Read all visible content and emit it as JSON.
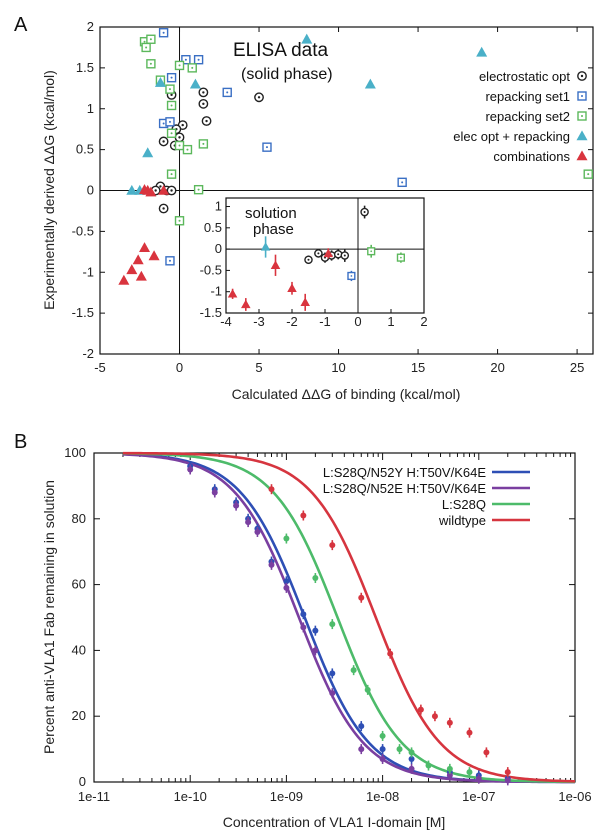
{
  "panels": {
    "a": "A",
    "b": "B"
  },
  "chart_data": [
    {
      "type": "scatter",
      "panel": "A",
      "xlabel": "Calculated ΔΔG of binding (kcal/mol)",
      "ylabel": "Experimentally derived ΔΔG (kcal/mol)",
      "xlim": [
        -5,
        26
      ],
      "ylim": [
        -2,
        2
      ],
      "xticks": [
        -5,
        0,
        5,
        10,
        15,
        20,
        25
      ],
      "yticks": [
        -2,
        -1.5,
        -1,
        -0.5,
        0,
        0.5,
        1,
        1.5,
        2
      ],
      "annotations": [
        "ELISA data",
        "(solid phase)"
      ],
      "legend_position": "top-right",
      "series": [
        {
          "name": "electrostatic opt",
          "marker": "circle-dot",
          "color": "#222222",
          "points": [
            [
              -1,
              0.6
            ],
            [
              -0.5,
              1.17
            ],
            [
              -0.3,
              0.55
            ],
            [
              0,
              0.65
            ],
            [
              0.2,
              0.8
            ],
            [
              -0.2,
              0.75
            ],
            [
              1.5,
              1.2
            ],
            [
              1.5,
              1.06
            ],
            [
              1.7,
              0.85
            ],
            [
              5,
              1.14
            ],
            [
              -1.2,
              0.05
            ],
            [
              -1.5,
              0
            ],
            [
              -0.8,
              0
            ],
            [
              -0.5,
              0
            ],
            [
              -1,
              -0.22
            ]
          ]
        },
        {
          "name": "repacking set1",
          "marker": "square-dot",
          "color": "#3a6fc4",
          "points": [
            [
              0.4,
              1.6
            ],
            [
              1.2,
              1.6
            ],
            [
              3,
              1.2
            ],
            [
              5.5,
              0.53
            ],
            [
              14,
              0.1
            ],
            [
              -1,
              0.82
            ],
            [
              -0.6,
              0.84
            ],
            [
              -0.5,
              1.38
            ],
            [
              -1,
              1.93
            ],
            [
              -0.6,
              -0.86
            ]
          ]
        },
        {
          "name": "repacking set2",
          "marker": "square-dot",
          "color": "#5cb85c",
          "points": [
            [
              -2.2,
              1.82
            ],
            [
              -1.8,
              1.85
            ],
            [
              -2.1,
              1.75
            ],
            [
              -1.8,
              1.55
            ],
            [
              -1.2,
              1.35
            ],
            [
              0,
              1.53
            ],
            [
              0.8,
              1.5
            ],
            [
              -0.6,
              1.24
            ],
            [
              -0.5,
              1.04
            ],
            [
              -0.5,
              0.7
            ],
            [
              0,
              0.55
            ],
            [
              0.5,
              0.5
            ],
            [
              1.5,
              0.57
            ],
            [
              -0.5,
              0.2
            ],
            [
              1.2,
              0.01
            ],
            [
              0,
              -0.37
            ],
            [
              25.7,
              0.2
            ]
          ]
        },
        {
          "name": "elec opt + repacking",
          "marker": "triangle",
          "color": "#4ab0c8",
          "points": [
            [
              -1.2,
              1.32
            ],
            [
              -2,
              0.46
            ],
            [
              1,
              1.3
            ],
            [
              8,
              1.85
            ],
            [
              12,
              1.3
            ],
            [
              19,
              1.69
            ],
            [
              -3,
              0
            ],
            [
              -2.5,
              0
            ]
          ]
        },
        {
          "name": "combinations",
          "marker": "triangle",
          "color": "#d9343e",
          "points": [
            [
              -3.5,
              -1.1
            ],
            [
              -3,
              -0.97
            ],
            [
              -2.6,
              -0.85
            ],
            [
              -2.4,
              -1.05
            ],
            [
              -2.2,
              -0.7
            ],
            [
              -1.6,
              -0.8
            ],
            [
              -1.8,
              -0.02
            ],
            [
              -2,
              0
            ],
            [
              -1,
              0
            ],
            [
              -2.2,
              0.01
            ]
          ]
        }
      ],
      "inset": {
        "annotations": [
          "solution",
          "phase"
        ],
        "xlim": [
          -4,
          2
        ],
        "ylim": [
          -1.5,
          1.2
        ],
        "xticks": [
          -4,
          -3,
          -2,
          -1,
          0,
          1,
          2
        ],
        "yticks": [
          1,
          0.5,
          0,
          -0.5,
          -1,
          -1.5
        ],
        "points": [
          {
            "series": "electrostatic opt",
            "x": 0.2,
            "y": 0.87,
            "err": 0.15
          },
          {
            "series": "electrostatic opt",
            "x": -1.5,
            "y": -0.25,
            "err": 0.1
          },
          {
            "series": "electrostatic opt",
            "x": -1.0,
            "y": -0.2,
            "err": 0.12
          },
          {
            "series": "electrostatic opt",
            "x": -0.8,
            "y": -0.15,
            "err": 0.12
          },
          {
            "series": "electrostatic opt",
            "x": -0.6,
            "y": -0.12,
            "err": 0.12
          },
          {
            "series": "electrostatic opt",
            "x": -0.4,
            "y": -0.15,
            "err": 0.15
          },
          {
            "series": "electrostatic opt",
            "x": -1.2,
            "y": -0.1,
            "err": 0.1
          },
          {
            "series": "repacking set1",
            "x": -0.2,
            "y": -0.63,
            "err": 0.12
          },
          {
            "series": "repacking set2",
            "x": 0.4,
            "y": -0.05,
            "err": 0.15
          },
          {
            "series": "repacking set2",
            "x": 1.3,
            "y": -0.2,
            "err": 0.12
          },
          {
            "series": "elec opt + repacking",
            "x": -2.8,
            "y": 0.05,
            "err": 0.25
          },
          {
            "series": "combinations",
            "x": -3.8,
            "y": -1.05,
            "err": 0.12
          },
          {
            "series": "combinations",
            "x": -3.4,
            "y": -1.3,
            "err": 0.15
          },
          {
            "series": "combinations",
            "x": -2.5,
            "y": -0.38,
            "err": 0.25
          },
          {
            "series": "combinations",
            "x": -2.0,
            "y": -0.92,
            "err": 0.15
          },
          {
            "series": "combinations",
            "x": -1.6,
            "y": -1.25,
            "err": 0.2
          },
          {
            "series": "combinations",
            "x": -0.9,
            "y": -0.1,
            "err": 0.12
          }
        ]
      }
    },
    {
      "type": "line",
      "panel": "B",
      "xlabel": "Concentration of VLA1 I-domain [M]",
      "ylabel": "Percent anti-VLA1 Fab remaining in solution",
      "xscale": "log",
      "xlim": [
        1e-11,
        1e-06
      ],
      "ylim": [
        0,
        100
      ],
      "xticks": [
        "1e-11",
        "1e-10",
        "1e-09",
        "1e-08",
        "1e-07",
        "1e-06"
      ],
      "yticks": [
        0,
        20,
        40,
        60,
        80,
        100
      ],
      "legend_position": "top-right",
      "series": [
        {
          "name": "L:S28Q/N52Y H:T50V/K64E",
          "color": "#2e4fb5",
          "ec50": 1.55e-09,
          "hill": 1.3,
          "points": [
            [
              1e-10,
              96
            ],
            [
              1.8e-10,
              89
            ],
            [
              3e-10,
              85
            ],
            [
              4e-10,
              80
            ],
            [
              5e-10,
              77
            ],
            [
              7e-10,
              67
            ],
            [
              1e-09,
              61
            ],
            [
              1.5e-09,
              51
            ],
            [
              2e-09,
              46
            ],
            [
              3e-09,
              33
            ],
            [
              6e-09,
              17
            ],
            [
              1e-08,
              10
            ],
            [
              2e-08,
              7
            ],
            [
              5e-08,
              3
            ],
            [
              1e-07,
              2
            ],
            [
              2e-07,
              1
            ]
          ]
        },
        {
          "name": "L:S28Q/N52E H:T50V/K64E",
          "color": "#7a3fa0",
          "ec50": 1.35e-09,
          "hill": 1.3,
          "points": [
            [
              1e-10,
              95
            ],
            [
              1.8e-10,
              88
            ],
            [
              3e-10,
              84
            ],
            [
              4e-10,
              79
            ],
            [
              5e-10,
              76
            ],
            [
              7e-10,
              66
            ],
            [
              1e-09,
              59
            ],
            [
              1.5e-09,
              47
            ],
            [
              2e-09,
              40
            ],
            [
              3e-09,
              27
            ],
            [
              6e-09,
              10
            ],
            [
              1e-08,
              7
            ],
            [
              2e-08,
              4
            ],
            [
              5e-08,
              2
            ],
            [
              1e-07,
              1
            ],
            [
              2e-07,
              0.5
            ]
          ]
        },
        {
          "name": "L:S28Q",
          "color": "#4dbb6a",
          "ec50": 3.4e-09,
          "hill": 1.3,
          "points": [
            [
              1e-09,
              74
            ],
            [
              2e-09,
              62
            ],
            [
              3e-09,
              48
            ],
            [
              5e-09,
              34
            ],
            [
              7e-09,
              28
            ],
            [
              1e-08,
              14
            ],
            [
              1.5e-08,
              10
            ],
            [
              2e-08,
              9
            ],
            [
              3e-08,
              5
            ],
            [
              5e-08,
              4
            ],
            [
              8e-08,
              3
            ]
          ]
        },
        {
          "name": "wildtype",
          "color": "#d6353f",
          "ec50": 8.5e-09,
          "hill": 1.3,
          "points": [
            [
              7e-10,
              89
            ],
            [
              1.5e-09,
              81
            ],
            [
              3e-09,
              72
            ],
            [
              6e-09,
              56
            ],
            [
              1.2e-08,
              39
            ],
            [
              2.5e-08,
              22
            ],
            [
              3.5e-08,
              20
            ],
            [
              5e-08,
              18
            ],
            [
              8e-08,
              15
            ],
            [
              1.2e-07,
              9
            ],
            [
              2e-07,
              3
            ]
          ]
        }
      ]
    }
  ]
}
